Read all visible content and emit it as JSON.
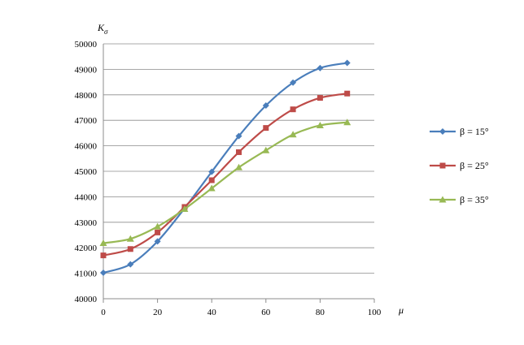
{
  "chart_data": {
    "type": "line",
    "title": "",
    "xlabel": "μ",
    "ylabel": "Kσ",
    "ylabel_main": "K",
    "ylabel_sub": "σ",
    "xlim": [
      0,
      100
    ],
    "ylim": [
      40000,
      50000
    ],
    "xticks": [
      0,
      20,
      40,
      60,
      80,
      100
    ],
    "yticks": [
      40000,
      41000,
      42000,
      43000,
      44000,
      45000,
      46000,
      47000,
      48000,
      49000,
      50000
    ],
    "grid": "horizontal",
    "legend_position": "right",
    "x": [
      0,
      10,
      20,
      30,
      40,
      50,
      60,
      70,
      80,
      90
    ],
    "series": [
      {
        "name": "β = 15°",
        "color": "#4a7ebb",
        "marker": "diamond",
        "values": [
          41020,
          41350,
          42250,
          43550,
          44980,
          46380,
          47580,
          48480,
          49050,
          49250
        ]
      },
      {
        "name": "β = 25°",
        "color": "#be4b48",
        "marker": "square",
        "values": [
          41700,
          41950,
          42600,
          43600,
          44650,
          45750,
          46700,
          47430,
          47880,
          48050
        ]
      },
      {
        "name": "β = 35°",
        "color": "#98b954",
        "marker": "triangle",
        "values": [
          42180,
          42350,
          42830,
          43520,
          44330,
          45150,
          45820,
          46440,
          46800,
          46920
        ]
      }
    ]
  }
}
